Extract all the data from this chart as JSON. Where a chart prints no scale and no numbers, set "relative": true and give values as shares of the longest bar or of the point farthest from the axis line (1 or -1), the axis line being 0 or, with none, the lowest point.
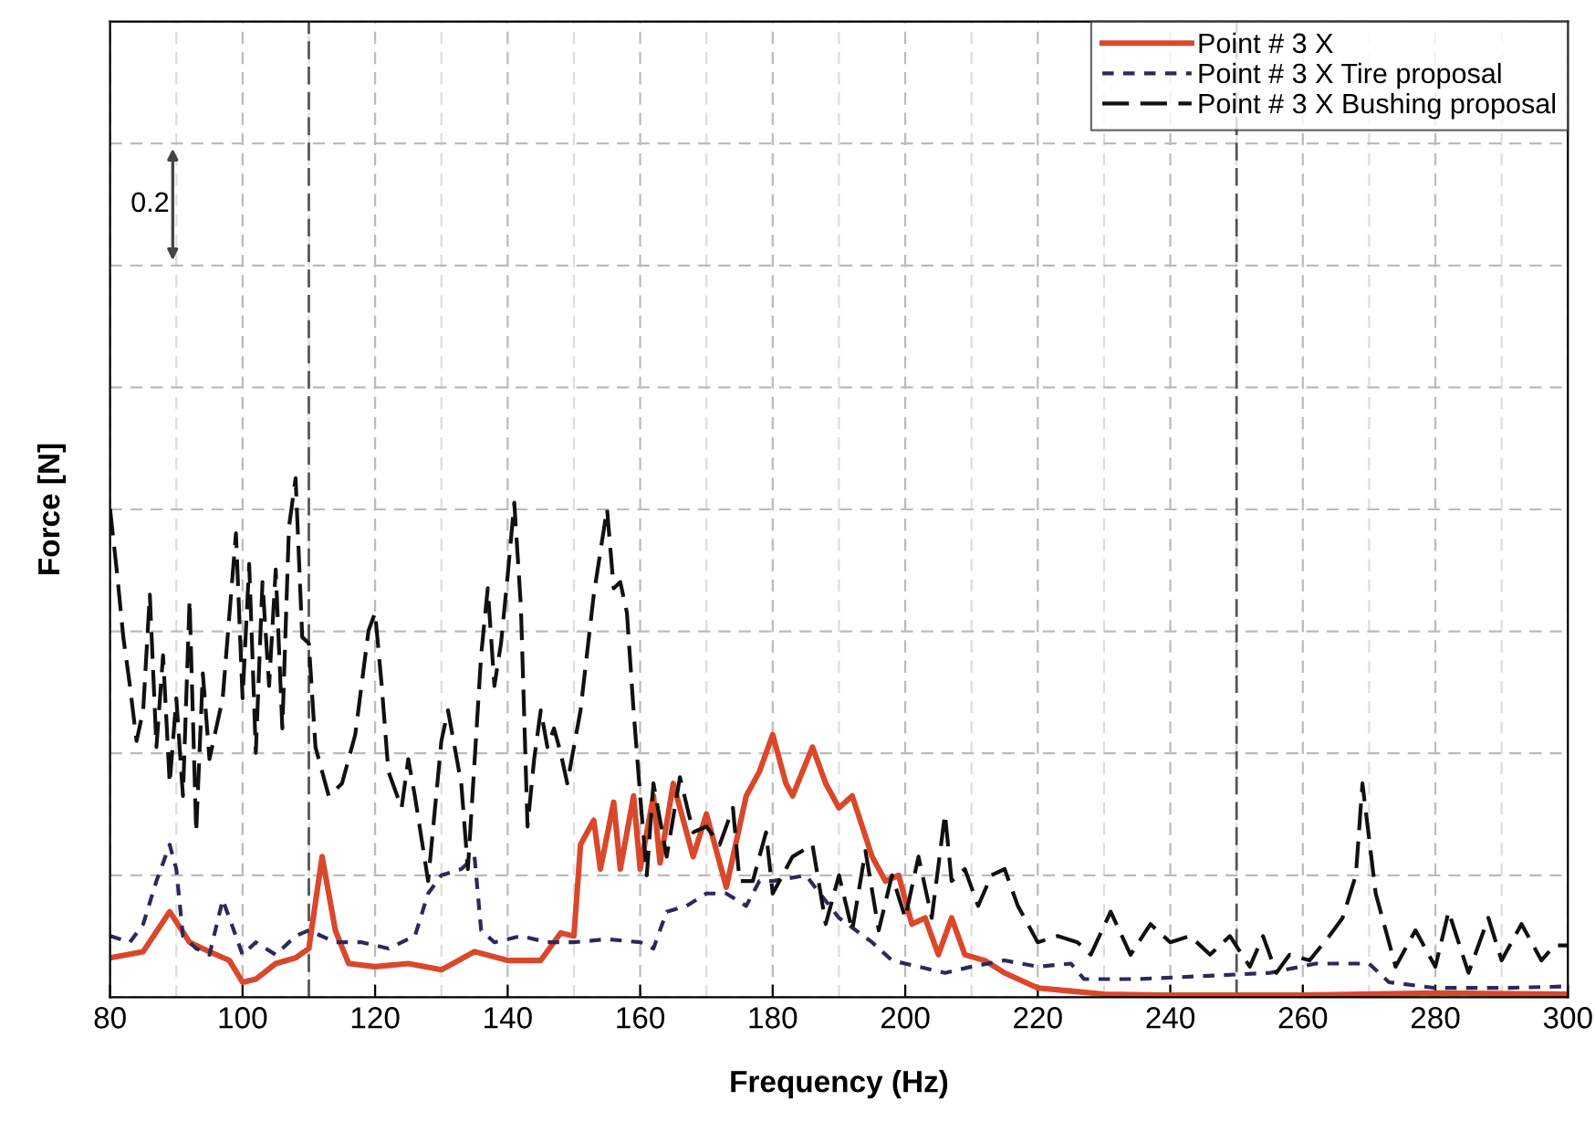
{
  "chart_data": {
    "type": "line",
    "xlabel": "Frequency (Hz)",
    "ylabel": "Force [N]",
    "xlim": [
      80,
      300
    ],
    "xticks": [
      80,
      100,
      120,
      140,
      160,
      180,
      200,
      220,
      240,
      260,
      280,
      300
    ],
    "relative": true,
    "tick_labels": "x",
    "grid": true,
    "legend": "top right",
    "annotations": [
      "0.2"
    ],
    "ref_lines": [
      {
        "axis": "x",
        "value": 110,
        "label": null,
        "color": "#555555",
        "line_style": "dashed"
      },
      {
        "axis": "x",
        "value": 250,
        "label": null,
        "color": "#555555",
        "line_style": "dashed"
      }
    ],
    "series": [
      {
        "name": "Point # 3 X",
        "color": "#d9482b",
        "line_style": "solid",
        "x": [
          80,
          85,
          89,
          92,
          95,
          98,
          100,
          102,
          105,
          108,
          110,
          112,
          114,
          116,
          120,
          125,
          130,
          135,
          140,
          145,
          148,
          150,
          151,
          153,
          154,
          156,
          157,
          159,
          160,
          162,
          163,
          165,
          168,
          170,
          173,
          176,
          178,
          180,
          182,
          183,
          186,
          188,
          190,
          192,
          195,
          197,
          199,
          201,
          203,
          205,
          207,
          209,
          212,
          215,
          220,
          225,
          230,
          240,
          260,
          280,
          300
        ],
        "values": [
          0.076,
          0.088,
          0.165,
          0.106,
          0.088,
          0.071,
          0.029,
          0.035,
          0.065,
          0.076,
          0.094,
          0.271,
          0.129,
          0.065,
          0.059,
          0.065,
          0.053,
          0.088,
          0.071,
          0.071,
          0.124,
          0.118,
          0.294,
          0.341,
          0.247,
          0.376,
          0.247,
          0.388,
          0.247,
          0.388,
          0.259,
          0.412,
          0.271,
          0.353,
          0.212,
          0.388,
          0.435,
          0.506,
          0.412,
          0.388,
          0.482,
          0.412,
          0.365,
          0.388,
          0.271,
          0.224,
          0.235,
          0.141,
          0.153,
          0.082,
          0.153,
          0.082,
          0.071,
          0.047,
          0.018,
          0.012,
          0.006,
          0.004,
          0.004,
          0.008,
          0.006
        ]
      },
      {
        "name": "Point # 3 X Tire proposal",
        "color": "#2a2a5a",
        "line_style": "dotted",
        "x": [
          80,
          83,
          85,
          87,
          89,
          90,
          91,
          93,
          95,
          97,
          98,
          100,
          102,
          105,
          108,
          110,
          114,
          118,
          122,
          126,
          128,
          130,
          133,
          135,
          136,
          138,
          142,
          146,
          150,
          155,
          160,
          162,
          164,
          167,
          170,
          173,
          176,
          178,
          180,
          185,
          190,
          195,
          198,
          202,
          206,
          210,
          215,
          220,
          225,
          227,
          235,
          245,
          255,
          262,
          270,
          273,
          280,
          290,
          300
        ],
        "values": [
          0.118,
          0.106,
          0.141,
          0.224,
          0.294,
          0.247,
          0.118,
          0.094,
          0.082,
          0.188,
          0.153,
          0.082,
          0.106,
          0.082,
          0.118,
          0.129,
          0.106,
          0.106,
          0.094,
          0.118,
          0.2,
          0.235,
          0.247,
          0.271,
          0.129,
          0.106,
          0.118,
          0.106,
          0.106,
          0.112,
          0.106,
          0.094,
          0.165,
          0.176,
          0.2,
          0.2,
          0.176,
          0.224,
          0.224,
          0.235,
          0.153,
          0.106,
          0.071,
          0.059,
          0.047,
          0.059,
          0.071,
          0.059,
          0.065,
          0.035,
          0.035,
          0.041,
          0.047,
          0.065,
          0.065,
          0.029,
          0.018,
          0.018,
          0.021
        ]
      },
      {
        "name": "Point # 3 X Bushing proposal",
        "color": "#111111",
        "line_style": "dashed",
        "x": [
          80,
          81,
          82,
          83,
          84,
          85,
          86,
          87,
          88,
          89,
          90,
          91,
          92,
          93,
          94,
          95,
          97,
          99,
          100,
          101,
          102,
          103,
          104,
          105,
          106,
          107,
          108,
          109,
          110,
          111,
          113,
          115,
          117,
          119,
          120,
          121,
          122,
          124,
          125,
          126,
          128,
          130,
          131,
          133,
          134,
          136,
          137,
          138,
          139,
          140,
          141,
          142,
          143,
          144,
          145,
          146,
          147,
          148,
          149,
          151,
          153,
          154,
          155,
          156,
          157,
          158,
          159,
          160,
          161,
          162,
          164,
          166,
          168,
          170,
          172,
          174,
          175,
          177,
          179,
          180,
          183,
          186,
          188,
          190,
          192,
          194,
          196,
          198,
          200,
          202,
          204,
          206,
          207,
          209,
          211,
          213,
          215,
          217,
          220,
          223,
          226,
          228,
          231,
          234,
          237,
          240,
          243,
          246,
          249,
          252,
          254,
          256,
          258,
          261,
          264,
          266,
          268,
          269,
          271,
          272,
          274,
          277,
          280,
          282,
          285,
          288,
          290,
          293,
          296,
          298,
          300
        ],
        "values": [
          0.941,
          0.824,
          0.694,
          0.6,
          0.494,
          0.553,
          0.776,
          0.482,
          0.659,
          0.412,
          0.576,
          0.388,
          0.765,
          0.318,
          0.624,
          0.459,
          0.576,
          0.894,
          0.576,
          0.835,
          0.471,
          0.8,
          0.6,
          0.824,
          0.518,
          0.906,
          1,
          0.694,
          0.682,
          0.482,
          0.388,
          0.412,
          0.506,
          0.706,
          0.741,
          0.6,
          0.435,
          0.365,
          0.459,
          0.388,
          0.224,
          0.494,
          0.553,
          0.412,
          0.247,
          0.659,
          0.788,
          0.6,
          0.682,
          0.812,
          0.953,
          0.753,
          0.329,
          0.459,
          0.553,
          0.482,
          0.518,
          0.471,
          0.412,
          0.553,
          0.776,
          0.859,
          0.941,
          0.788,
          0.8,
          0.741,
          0.553,
          0.388,
          0.235,
          0.412,
          0.271,
          0.424,
          0.318,
          0.329,
          0.294,
          0.365,
          0.224,
          0.224,
          0.318,
          0.2,
          0.271,
          0.294,
          0.141,
          0.235,
          0.129,
          0.282,
          0.129,
          0.235,
          0.153,
          0.271,
          0.153,
          0.353,
          0.224,
          0.247,
          0.176,
          0.235,
          0.247,
          0.176,
          0.106,
          0.118,
          0.106,
          0.082,
          0.165,
          0.082,
          0.141,
          0.106,
          0.118,
          0.082,
          0.118,
          0.059,
          0.118,
          0.047,
          0.082,
          0.071,
          0.118,
          0.153,
          0.235,
          0.412,
          0.2,
          0.153,
          0.059,
          0.129,
          0.059,
          0.165,
          0.047,
          0.153,
          0.071,
          0.141,
          0.071,
          0.1,
          0.1
        ]
      }
    ]
  }
}
